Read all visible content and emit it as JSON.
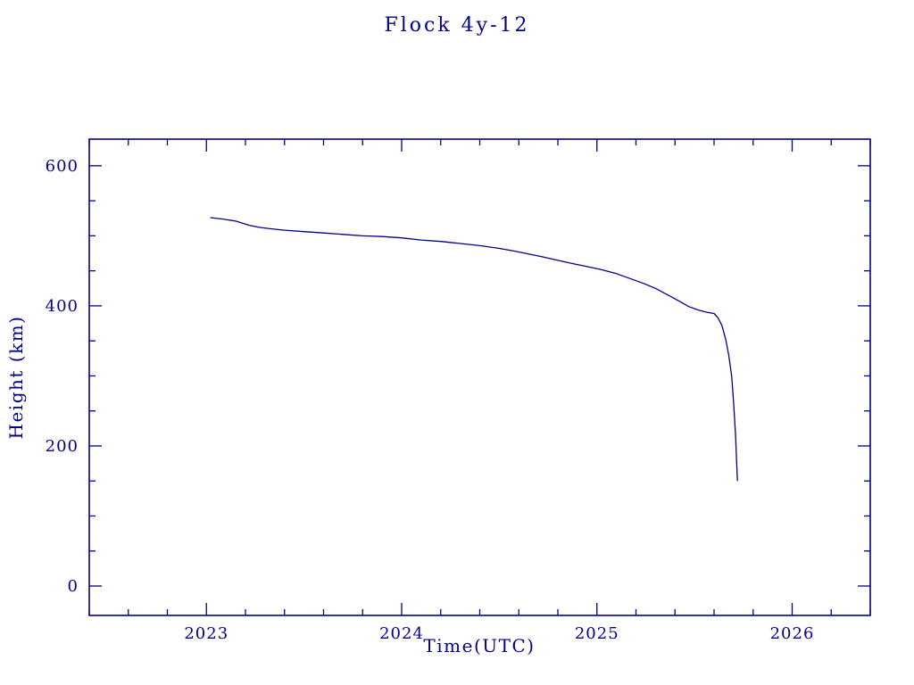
{
  "chart_data": {
    "type": "line",
    "title": "Flock 4y-12",
    "xlabel": "Time(UTC)",
    "ylabel": "Height (km)",
    "x_ticks": [
      2023,
      2024,
      2025,
      2026
    ],
    "y_ticks": [
      0,
      200,
      400,
      600
    ],
    "xlim": [
      2022.4,
      2026.4
    ],
    "ylim": [
      -42,
      638
    ],
    "x_minor_step": 0.2,
    "y_minor_step": 50,
    "grid": false,
    "legend": "none",
    "axis_color": "#00008b",
    "line_color": "#00008b",
    "background": "#ffffff",
    "series": [
      {
        "name": "height",
        "x": [
          2023.02,
          2023.08,
          2023.15,
          2023.22,
          2023.27,
          2023.33,
          2023.4,
          2023.5,
          2023.6,
          2023.7,
          2023.8,
          2023.9,
          2024.0,
          2024.1,
          2024.2,
          2024.3,
          2024.4,
          2024.5,
          2024.58,
          2024.65,
          2024.72,
          2024.8,
          2024.88,
          2024.95,
          2025.02,
          2025.1,
          2025.17,
          2025.24,
          2025.3,
          2025.36,
          2025.42,
          2025.47,
          2025.52,
          2025.56,
          2025.6,
          2025.62,
          2025.64,
          2025.66,
          2025.675,
          2025.69,
          2025.7,
          2025.71,
          2025.715,
          2025.72
        ],
        "y": [
          526,
          524,
          521,
          515,
          512,
          510,
          508,
          506,
          504,
          502,
          500,
          499,
          497,
          494,
          492,
          489,
          486,
          482,
          478,
          474,
          470,
          465,
          460,
          456,
          452,
          446,
          439,
          432,
          425,
          416,
          407,
          399,
          394,
          391,
          389,
          383,
          372,
          352,
          330,
          300,
          262,
          215,
          180,
          150
        ]
      }
    ]
  }
}
